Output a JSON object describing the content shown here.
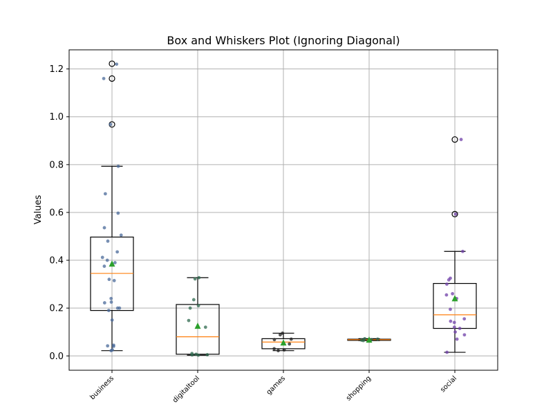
{
  "chart_data": {
    "type": "box",
    "title": "Box and Whiskers Plot (Ignoring Diagonal)",
    "xlabel": "",
    "ylabel": "Values",
    "ylim": [
      -0.06,
      1.28
    ],
    "yticks": [
      0.0,
      0.2,
      0.4,
      0.6,
      0.8,
      1.0,
      1.2
    ],
    "ytick_labels": [
      "0.0",
      "0.2",
      "0.4",
      "0.6",
      "0.8",
      "1.0",
      "1.2"
    ],
    "grid": true,
    "categories": [
      "business",
      "digitaltool",
      "games",
      "shopping",
      "social"
    ],
    "boxes": [
      {
        "category": "business",
        "whisker_low": 0.022,
        "q1": 0.19,
        "median": 0.345,
        "q3": 0.497,
        "whisker_high": 0.793,
        "mean": 0.385,
        "outliers": [
          0.968,
          1.16,
          1.222
        ],
        "points": [
          1.22,
          1.16,
          0.968,
          0.793,
          0.678,
          0.597,
          0.536,
          0.505,
          0.48,
          0.435,
          0.412,
          0.4,
          0.39,
          0.385,
          0.375,
          0.32,
          0.315,
          0.24,
          0.225,
          0.222,
          0.2,
          0.2,
          0.19,
          0.15,
          0.045,
          0.042,
          0.04,
          0.025,
          0.022
        ],
        "color": "#4a6a9a"
      },
      {
        "category": "digitaltool",
        "whisker_low": 0.003,
        "q1": 0.007,
        "median": 0.08,
        "q3": 0.215,
        "whisker_high": 0.327,
        "mean": 0.125,
        "outliers": [],
        "points": [
          0.327,
          0.322,
          0.235,
          0.21,
          0.2,
          0.148,
          0.12,
          0.01,
          0.007,
          0.005,
          0.004,
          0.003
        ],
        "color": "#2f6a4f"
      },
      {
        "category": "games",
        "whisker_low": 0.022,
        "q1": 0.03,
        "median": 0.058,
        "q3": 0.072,
        "whisker_high": 0.095,
        "mean": 0.055,
        "outliers": [],
        "points": [
          0.095,
          0.088,
          0.07,
          0.068,
          0.05,
          0.03,
          0.025,
          0.022
        ],
        "color": "#1f1f1f"
      },
      {
        "category": "shopping",
        "whisker_low": 0.064,
        "q1": 0.065,
        "median": 0.068,
        "q3": 0.07,
        "whisker_high": 0.072,
        "mean": 0.067,
        "outliers": [],
        "points": [
          0.072,
          0.07,
          0.068,
          0.066,
          0.064
        ],
        "color": "#2f6a4f"
      },
      {
        "category": "social",
        "whisker_low": 0.015,
        "q1": 0.115,
        "median": 0.172,
        "q3": 0.303,
        "whisker_high": 0.437,
        "mean": 0.24,
        "outliers": [
          0.593,
          0.905
        ],
        "points": [
          0.905,
          0.593,
          0.437,
          0.325,
          0.318,
          0.3,
          0.26,
          0.255,
          0.24,
          0.195,
          0.155,
          0.145,
          0.14,
          0.12,
          0.115,
          0.1,
          0.088,
          0.07,
          0.015
        ],
        "color": "#6f3fa8"
      }
    ]
  }
}
